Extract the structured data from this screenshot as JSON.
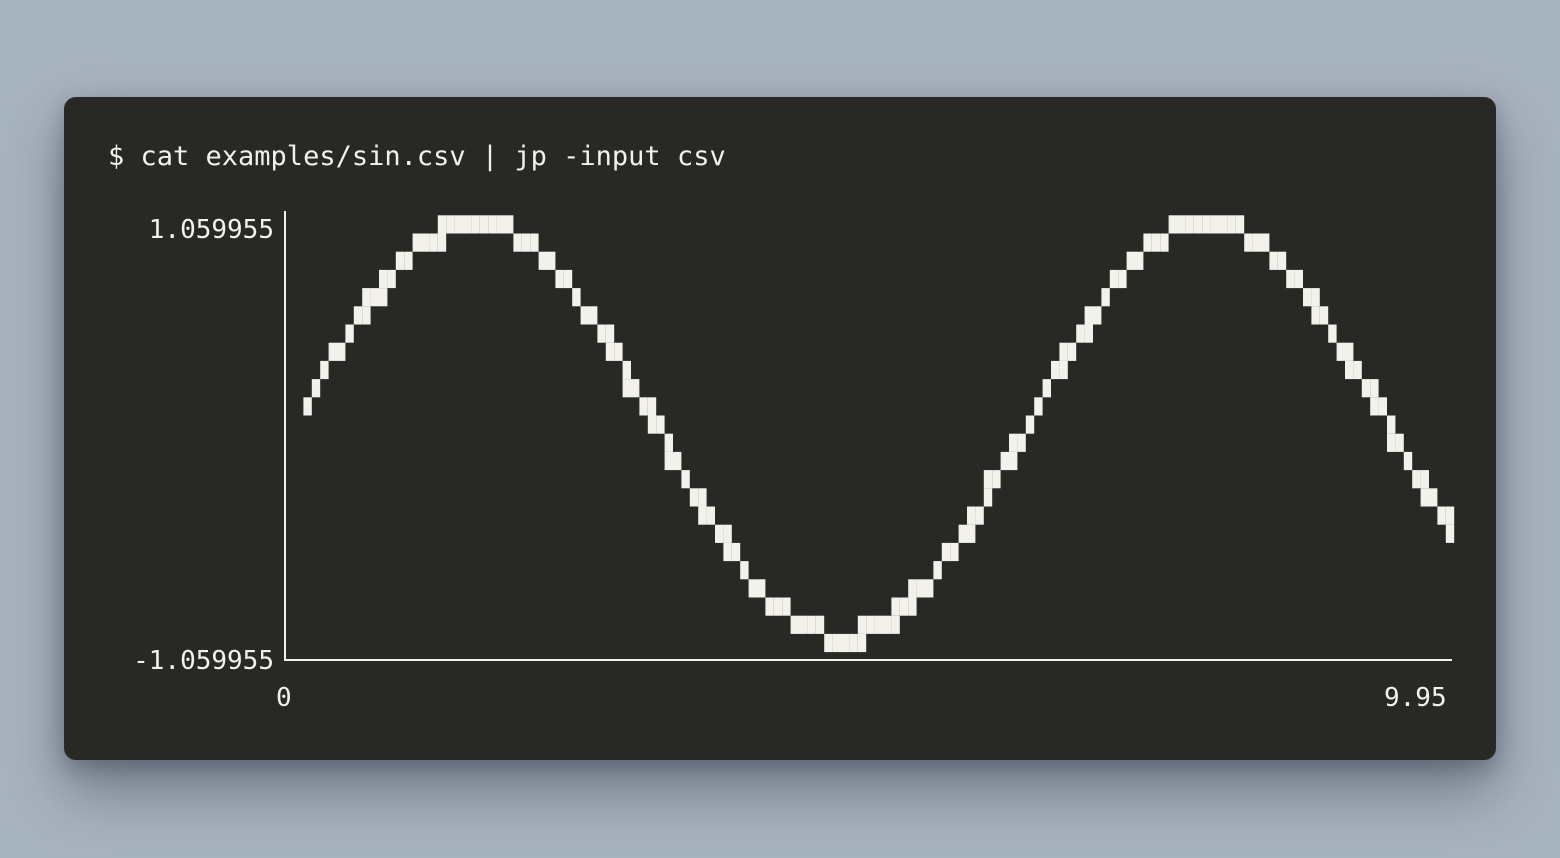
{
  "terminal": {
    "command": "$ cat examples/sin.csv | jp -input csv"
  },
  "colors": {
    "background": "#a8b3c0",
    "terminal_bg": "#282824",
    "foreground": "#f2f2ea"
  },
  "chart_data": {
    "type": "line",
    "title": "",
    "xlabel": "",
    "ylabel": "",
    "x_tick_labels": [
      "0",
      "9.95"
    ],
    "y_tick_labels": [
      "1.059955",
      "-1.059955"
    ],
    "xlim": [
      0,
      9.95
    ],
    "ylim": [
      -1.059955,
      1.059955
    ],
    "grid": false,
    "series": [
      {
        "function": "sin(x)",
        "x_start": 0.1,
        "x_end": 9.95,
        "x_step": 0.05
      }
    ]
  }
}
